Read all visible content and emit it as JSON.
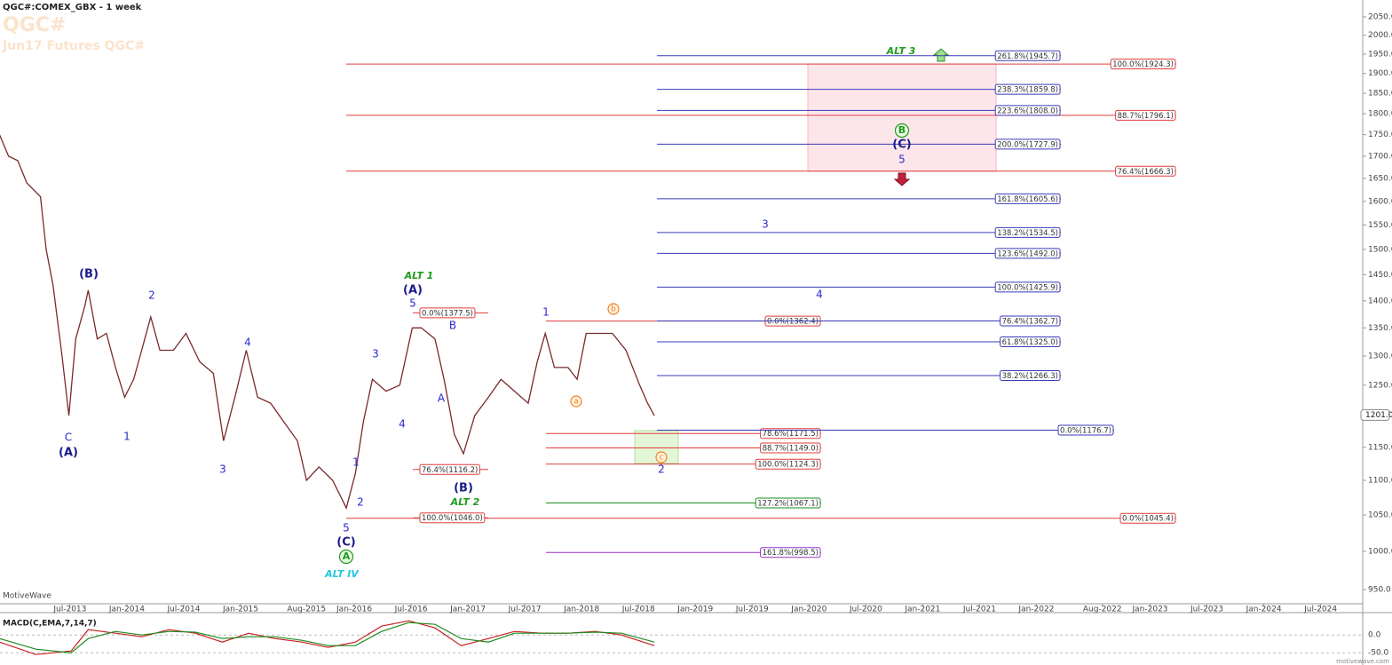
{
  "chart_data": {
    "type": "line",
    "title": "QGC#:COMEX_GBX - 1 week",
    "symbol": "QGC#",
    "subtitle": "Jun17 Futures QGC#",
    "watermark": "MotiveWave",
    "footer": "motivewave.com",
    "log_scale": true,
    "color": "#7a2a2a",
    "x": [
      2012.88,
      2012.96,
      2013.04,
      2013.12,
      2013.24,
      2013.29,
      2013.35,
      2013.43,
      2013.49,
      2013.55,
      2013.63,
      2013.66,
      2013.74,
      2013.82,
      2013.9,
      2013.98,
      2014.06,
      2014.13,
      2014.21,
      2014.29,
      2014.41,
      2014.52,
      2014.64,
      2014.76,
      2014.85,
      2014.95,
      2015.05,
      2015.15,
      2015.265,
      2015.38,
      2015.5,
      2015.58,
      2015.69,
      2015.81,
      2015.93,
      2016.01,
      2016.08,
      2016.16,
      2016.28,
      2016.4,
      2016.51,
      2016.59,
      2016.71,
      2016.79,
      2016.88,
      2016.96,
      2017.06,
      2017.18,
      2017.29,
      2017.41,
      2017.53,
      2017.61,
      2017.68,
      2017.76,
      2017.88,
      2017.96,
      2018.04,
      2018.15,
      2018.27,
      2018.39,
      2018.51,
      2018.58,
      2018.64
    ],
    "values": [
      1750,
      1700,
      1690,
      1640,
      1610,
      1500,
      1430,
      1300,
      1200,
      1330,
      1390,
      1420,
      1330,
      1340,
      1280,
      1230,
      1260,
      1310,
      1370,
      1310,
      1310,
      1340,
      1290,
      1270,
      1160,
      1230,
      1310,
      1230,
      1220,
      1190,
      1160,
      1100,
      1120,
      1100,
      1060,
      1110,
      1190,
      1260,
      1240,
      1250,
      1350,
      1350,
      1330,
      1260,
      1170,
      1140,
      1200,
      1230,
      1260,
      1240,
      1220,
      1290,
      1340,
      1280,
      1280,
      1260,
      1340,
      1340,
      1340,
      1310,
      1250,
      1220,
      1200
    ],
    "xlim": [
      2012.884,
      2024.87
    ],
    "xticks": [
      {
        "value": 2013.5,
        "label": "Jul-2013"
      },
      {
        "value": 2014.0,
        "label": "Jan-2014"
      },
      {
        "value": 2014.5,
        "label": "Jul-2014"
      },
      {
        "value": 2015.0,
        "label": "Jan-2015"
      },
      {
        "value": 2015.58,
        "label": "Aug-2015"
      },
      {
        "value": 2016.0,
        "label": "Jan-2016"
      },
      {
        "value": 2016.5,
        "label": "Jul-2016"
      },
      {
        "value": 2017.0,
        "label": "Jan-2017"
      },
      {
        "value": 2017.5,
        "label": "Jul-2017"
      },
      {
        "value": 2018.0,
        "label": "Jan-2018"
      },
      {
        "value": 2018.5,
        "label": "Jul-2018"
      },
      {
        "value": 2019.0,
        "label": "Jan-2019"
      },
      {
        "value": 2019.5,
        "label": "Jul-2019"
      },
      {
        "value": 2020.0,
        "label": "Jan-2020"
      },
      {
        "value": 2020.5,
        "label": "Jul-2020"
      },
      {
        "value": 2021.0,
        "label": "Jan-2021"
      },
      {
        "value": 2021.5,
        "label": "Jul-2021"
      },
      {
        "value": 2022.0,
        "label": "Jan-2022"
      },
      {
        "value": 2022.58,
        "label": "Aug-2022"
      },
      {
        "value": 2023.0,
        "label": "Jan-2023"
      },
      {
        "value": 2023.5,
        "label": "Jul-2023"
      },
      {
        "value": 2024.0,
        "label": "Jan-2024"
      },
      {
        "value": 2024.5,
        "label": "Jul-2024"
      }
    ],
    "ylim": [
      932,
      2097
    ],
    "yticks": [
      {
        "value": 2050,
        "label": "2050.0"
      },
      {
        "value": 2000,
        "label": "2000.0"
      },
      {
        "value": 1950,
        "label": "1950.0"
      },
      {
        "value": 1900,
        "label": "1900.0"
      },
      {
        "value": 1850,
        "label": "1850.0"
      },
      {
        "value": 1800,
        "label": "1800.0"
      },
      {
        "value": 1750,
        "label": "1750.0"
      },
      {
        "value": 1700,
        "label": "1700.0"
      },
      {
        "value": 1650,
        "label": "1650.0"
      },
      {
        "value": 1600,
        "label": "1600.0"
      },
      {
        "value": 1550,
        "label": "1550.0"
      },
      {
        "value": 1500,
        "label": "1500.0"
      },
      {
        "value": 1450,
        "label": "1450.0"
      },
      {
        "value": 1400,
        "label": "1400.0"
      },
      {
        "value": 1350,
        "label": "1350.0"
      },
      {
        "value": 1300,
        "label": "1300.0"
      },
      {
        "value": 1250,
        "label": "1250.0"
      },
      {
        "value": 1150,
        "label": "1150.0"
      },
      {
        "value": 1100,
        "label": "1100.0"
      },
      {
        "value": 1050,
        "label": "1050.0"
      },
      {
        "value": 1000,
        "label": "1000.0"
      },
      {
        "value": 950,
        "label": "950.0"
      }
    ],
    "last_price": {
      "value": 1201,
      "label": "1201.0"
    },
    "fib_groups": [
      {
        "color": "#e03c3c",
        "levels": [
          {
            "label": "100.0%(1924.3)",
            "value": 1924.3
          },
          {
            "label": "88.7%(1796.1)",
            "value": 1796.1
          },
          {
            "label": "76.4%(1666.3)",
            "value": 1666.3
          },
          {
            "label": "0.0%(1045.4)",
            "value": 1045.4
          }
        ]
      },
      {
        "color": "#e03c3c",
        "levels": [
          {
            "label": "0.0%(1377.5)",
            "value": 1377.5
          },
          {
            "label": "76.4%(1116.2)",
            "value": 1116.2
          },
          {
            "label": "100.0%(1046.0)",
            "value": 1046.0
          }
        ]
      },
      {
        "color": "#e03c3c",
        "levels": [
          {
            "label": "0.0%(1362.4)",
            "value": 1362.4
          },
          {
            "label": "78.6%(1171.5)",
            "value": 1171.5
          },
          {
            "label": "88.7%(1149.0)",
            "value": 1149.0
          },
          {
            "label": "100.0%(1124.3)",
            "value": 1124.3
          }
        ]
      },
      {
        "color": "#1e8c1e",
        "levels": [
          {
            "label": "127.2%(1067.1)",
            "value": 1067.1
          }
        ]
      },
      {
        "color": "#9b30c8",
        "levels": [
          {
            "label": "161.8%(998.5)",
            "value": 998.5
          }
        ]
      },
      {
        "color": "#3a3ab8",
        "levels": [
          {
            "label": "261.8%(1945.7)",
            "value": 1945.7
          },
          {
            "label": "238.3%(1859.8)",
            "value": 1859.8
          },
          {
            "label": "223.6%(1808.0)",
            "value": 1808.0
          },
          {
            "label": "200.0%(1727.9)",
            "value": 1727.9
          },
          {
            "label": "161.8%(1605.6)",
            "value": 1605.6
          },
          {
            "label": "138.2%(1534.5)",
            "value": 1534.5
          },
          {
            "label": "123.6%(1492.0)",
            "value": 1492.0
          },
          {
            "label": "100.0%(1425.9)",
            "value": 1425.9
          },
          {
            "label": "76.4%(1362.7)",
            "value": 1362.7
          },
          {
            "label": "61.8%(1325.0)",
            "value": 1325.0
          },
          {
            "label": "38.2%(1266.3)",
            "value": 1266.3
          }
        ]
      },
      {
        "color": "#3a3ab8",
        "levels": [
          {
            "label": "0.0%(1176.7)",
            "value": 1176.7
          }
        ]
      }
    ],
    "annotations": [
      {
        "text": "(B)",
        "color": "#1a1a8c",
        "style": "bold"
      },
      {
        "text": "C",
        "color": "#2a2ad0",
        "style": "plain"
      },
      {
        "text": "(A)",
        "color": "#1a1a8c",
        "style": "bold"
      },
      {
        "text": "2",
        "color": "#2a2ad0",
        "style": "plain"
      },
      {
        "text": "1",
        "color": "#2a2ad0",
        "style": "plain"
      },
      {
        "text": "4",
        "color": "#2a2ad0",
        "style": "plain"
      },
      {
        "text": "3",
        "color": "#2a2ad0",
        "style": "plain"
      },
      {
        "text": "ALT 1",
        "color": "#1e9c1e",
        "style": "italic"
      },
      {
        "text": "(A)",
        "color": "#1a1a8c",
        "style": "bold"
      },
      {
        "text": "5",
        "color": "#2a2ad0",
        "style": "plain"
      },
      {
        "text": "3",
        "color": "#2a2ad0",
        "style": "plain"
      },
      {
        "text": "4",
        "color": "#2a2ad0",
        "style": "plain"
      },
      {
        "text": "B",
        "color": "#2a2ad0",
        "style": "plain"
      },
      {
        "text": "A",
        "color": "#2a2ad0",
        "style": "plain"
      },
      {
        "text": "1",
        "color": "#2a2ad0",
        "style": "plain"
      },
      {
        "text": "2",
        "color": "#2a2ad0",
        "style": "plain"
      },
      {
        "text": "5",
        "color": "#2a2ad0",
        "style": "plain"
      },
      {
        "text": "(C)",
        "color": "#1a1a8c",
        "style": "bold"
      },
      {
        "text": "A",
        "color": "#1e9c1e",
        "style": "circled"
      },
      {
        "text": "ALT IV",
        "color": "#22c8e0",
        "style": "italic"
      },
      {
        "text": "(B)",
        "color": "#1a1a8c",
        "style": "bold"
      },
      {
        "text": "ALT 2",
        "color": "#1e9c1e",
        "style": "italic"
      },
      {
        "text": "1",
        "color": "#2a2ad0",
        "style": "plain"
      },
      {
        "text": "b",
        "color": "#f08020",
        "style": "circled"
      },
      {
        "text": "a",
        "color": "#f08020",
        "style": "circled"
      },
      {
        "text": "c",
        "color": "#f08020",
        "style": "circled"
      },
      {
        "text": "2",
        "color": "#2a2ad0",
        "style": "plain"
      },
      {
        "text": "ALT 3",
        "color": "#1e9c1e",
        "style": "italic"
      },
      {
        "text": "B",
        "color": "#1e9c1e",
        "style": "circled"
      },
      {
        "text": "(C)",
        "color": "#1a1a8c",
        "style": "bold"
      },
      {
        "text": "5",
        "color": "#2a2ad0",
        "style": "plain"
      },
      {
        "text": "3",
        "color": "#2a2ad0",
        "style": "plain"
      },
      {
        "text": "4",
        "color": "#2a2ad0",
        "style": "plain"
      }
    ],
    "macd": {
      "title": "MACD(C,EMA,7,14,7)",
      "x": [
        2012.88,
        2013.2,
        2013.51,
        2013.66,
        2013.9,
        2014.13,
        2014.37,
        2014.6,
        2014.84,
        2015.07,
        2015.3,
        2015.54,
        2015.77,
        2016.01,
        2016.24,
        2016.48,
        2016.71,
        2016.94,
        2017.18,
        2017.41,
        2017.65,
        2017.88,
        2018.12,
        2018.35,
        2018.64
      ],
      "macd": [
        -20,
        -55,
        -45,
        15,
        5,
        -5,
        15,
        5,
        -20,
        5,
        -10,
        -20,
        -35,
        -20,
        25,
        40,
        20,
        -30,
        -10,
        10,
        5,
        5,
        10,
        0,
        -30
      ],
      "signal": [
        -10,
        -40,
        -50,
        -10,
        10,
        0,
        10,
        8,
        -10,
        -5,
        -5,
        -15,
        -30,
        -30,
        10,
        35,
        30,
        -10,
        -20,
        5,
        5,
        5,
        8,
        5,
        -20
      ],
      "macd_color": "#c82020",
      "signal_color": "#208a20",
      "ylim": [
        -82,
        58
      ],
      "yticks": [
        {
          "value": 0,
          "label": "0.0"
        },
        {
          "value": -50,
          "label": "-50.0"
        }
      ]
    }
  }
}
